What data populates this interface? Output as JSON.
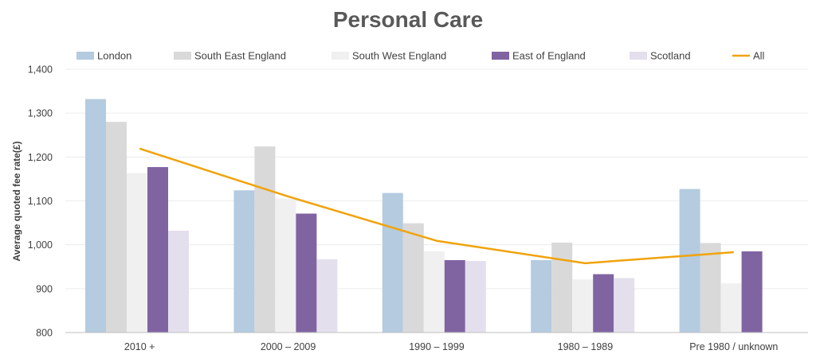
{
  "chart_data": {
    "type": "bar",
    "title": "Personal Care",
    "xlabel": "",
    "ylabel": "Average quoted fee rate(£)",
    "categories": [
      "2010 +",
      "2000 – 2009",
      "1990 – 1999",
      "1980 – 1989",
      "Pre 1980 / unknown"
    ],
    "ylim": [
      800,
      1400
    ],
    "yticks": [
      800,
      900,
      1000,
      1100,
      1200,
      1300,
      1400
    ],
    "ytick_labels": [
      "800",
      "900",
      "1,000",
      "1,100",
      "1,200",
      "1,300",
      "1,400"
    ],
    "grid": true,
    "legend_position": "top",
    "series": [
      {
        "name": "London",
        "kind": "bar",
        "color": "#b4cbe0",
        "values": [
          1332,
          1124,
          1118,
          965,
          1127
        ]
      },
      {
        "name": "South East England",
        "kind": "bar",
        "color": "#d9d9d9",
        "values": [
          1280,
          1224,
          1049,
          1005,
          1004
        ]
      },
      {
        "name": "South West England",
        "kind": "bar",
        "color": "#f0f0f0",
        "values": [
          1163,
          1105,
          985,
          921,
          912
        ]
      },
      {
        "name": "East of England",
        "kind": "bar",
        "color": "#8064a2",
        "values": [
          1177,
          1071,
          965,
          933,
          985
        ]
      },
      {
        "name": "Scotland",
        "kind": "bar",
        "color": "#e4dfec",
        "values": [
          1032,
          967,
          963,
          924,
          null
        ]
      },
      {
        "name": "All",
        "kind": "line",
        "color": "#f0a30a",
        "values": [
          1219,
          1110,
          1009,
          958,
          983
        ]
      }
    ]
  }
}
